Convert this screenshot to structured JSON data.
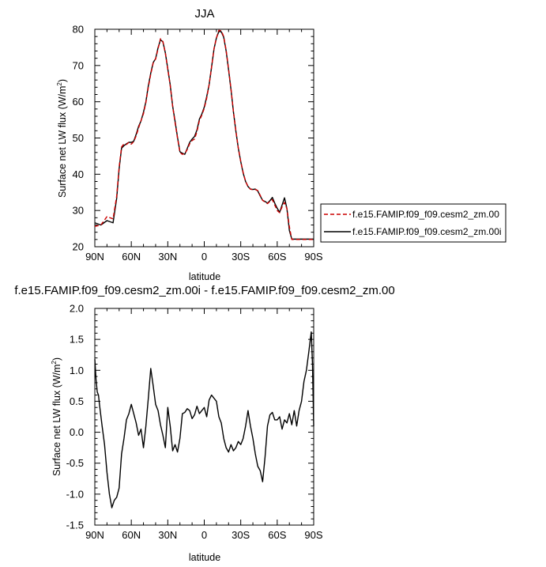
{
  "chart_data": [
    {
      "type": "line",
      "title": "JJA",
      "xlabel": "latitude",
      "ylabel": "Surface net LW flux (W/m",
      "ylabel_sup": "2",
      "ylabel_close": ")",
      "xlim": [
        90,
        -90
      ],
      "ylim": [
        20,
        80
      ],
      "x_ticks": [
        90,
        60,
        30,
        0,
        -30,
        -60,
        -90
      ],
      "x_tick_labels": [
        "90N",
        "60N",
        "30N",
        "0",
        "30S",
        "60S",
        "90S"
      ],
      "y_ticks": [
        20,
        30,
        40,
        50,
        60,
        70,
        80
      ],
      "y_tick_labels": [
        "20",
        "30",
        "40",
        "50",
        "60",
        "70",
        "80"
      ],
      "legend_position": "right",
      "x": [
        90,
        85,
        80,
        75,
        72,
        70,
        68,
        66,
        64,
        62,
        60,
        58,
        56,
        54,
        52,
        50,
        48,
        46,
        44,
        42,
        40,
        38,
        36,
        34,
        32,
        30,
        28,
        26,
        24,
        22,
        20,
        18,
        16,
        14,
        12,
        10,
        8,
        6,
        4,
        2,
        0,
        -2,
        -4,
        -6,
        -8,
        -10,
        -12,
        -14,
        -16,
        -18,
        -20,
        -22,
        -24,
        -26,
        -28,
        -30,
        -32,
        -34,
        -36,
        -38,
        -40,
        -42,
        -44,
        -46,
        -48,
        -50,
        -52,
        -54,
        -56,
        -58,
        -60,
        -62,
        -64,
        -66,
        -68,
        -70,
        -72,
        -74,
        -76,
        -78,
        -80,
        -82,
        -84,
        -86,
        -88,
        -90
      ],
      "series": [
        {
          "name": "f.e15.FAMIP.f09_f09.cesm2_zm.00",
          "color": "#cc0000",
          "dash": "dashed",
          "values": [
            25.6,
            26.0,
            28.3,
            27.7,
            34,
            42,
            47.5,
            48.4,
            48.2,
            48.8,
            48.3,
            49.0,
            50.6,
            52.8,
            54.8,
            56.7,
            59.8,
            64.0,
            67.6,
            70.7,
            71.8,
            74.6,
            77.4,
            76.6,
            73.4,
            69.0,
            64.5,
            58.8,
            54.2,
            50.0,
            46.0,
            45.5,
            45.7,
            46.8,
            48.4,
            49.3,
            49.7,
            51.8,
            54.8,
            56.3,
            58.2,
            61.0,
            64.7,
            69.5,
            74.6,
            77.6,
            79.7,
            79.6,
            78.0,
            74.2,
            69.0,
            63.5,
            57.3,
            52.0,
            47.2,
            43.5,
            40.5,
            38.0,
            36.6,
            35.9,
            35.7,
            35.8,
            35.5,
            34.2,
            32.8,
            32.3,
            31.9,
            32.5,
            33.0,
            31.5,
            30.0,
            29.4,
            31.0,
            32.2,
            30.5,
            25.5,
            22.0,
            22.0,
            22.0,
            22.0,
            22.0,
            22.0,
            22.0,
            22.0,
            22.0,
            22.0
          ]
        },
        {
          "name": "f.e15.FAMIP.f09_f09.cesm2_zm.00i",
          "color": "#000000",
          "dash": "solid",
          "values": [
            26.6,
            26.0,
            27.2,
            26.6,
            33.4,
            41.5,
            47.2,
            47.9,
            48.4,
            48.8,
            48.8,
            49.1,
            51.0,
            53.2,
            54.7,
            57.1,
            60.0,
            64.4,
            67.9,
            70.8,
            71.9,
            74.9,
            77.1,
            76.5,
            73.5,
            69.1,
            64.7,
            58.8,
            54.6,
            50.2,
            46.2,
            45.8,
            45.5,
            47.1,
            48.8,
            49.7,
            50.4,
            52.2,
            55.2,
            56.6,
            58.5,
            61.4,
            64.7,
            69.5,
            74.5,
            77.6,
            79.4,
            79.3,
            77.8,
            74.0,
            68.8,
            63.3,
            57.2,
            51.9,
            47.2,
            43.5,
            40.3,
            38.0,
            36.6,
            35.9,
            35.8,
            35.9,
            35.4,
            34.0,
            32.8,
            32.5,
            32.0,
            32.7,
            33.6,
            32.0,
            30.6,
            29.5,
            31.5,
            33.5,
            30.5,
            24.5,
            22.1,
            22.1,
            22.1,
            22.1,
            22.1,
            22.1,
            22.1,
            22.1,
            22.1,
            22.1
          ]
        }
      ]
    },
    {
      "type": "line",
      "title": "f.e15.FAMIP.f09_f09.cesm2_zm.00i - f.e15.FAMIP.f09_f09.cesm2_zm.00",
      "xlabel": "latitude",
      "ylabel": "Surface net LW flux (W/m",
      "ylabel_sup": "2",
      "ylabel_close": ")",
      "xlim": [
        90,
        -90
      ],
      "ylim": [
        -1.5,
        2.0
      ],
      "x_ticks": [
        90,
        60,
        30,
        0,
        -30,
        -60,
        -90
      ],
      "x_tick_labels": [
        "90N",
        "60N",
        "30N",
        "0",
        "30S",
        "60S",
        "90S"
      ],
      "y_ticks": [
        -1.5,
        -1.0,
        -0.5,
        0.0,
        0.5,
        1.0,
        1.5,
        2.0
      ],
      "y_tick_labels": [
        "-1.5",
        "-1.0",
        "-0.5",
        "0.0",
        "0.5",
        "1.0",
        "1.5",
        "2.0"
      ],
      "x": [
        90,
        89,
        88,
        87,
        86,
        84,
        82,
        80,
        78,
        76,
        74,
        72,
        70,
        68,
        66,
        64,
        62,
        60,
        58,
        56,
        54,
        52,
        50,
        48,
        46,
        44,
        42,
        40,
        38,
        36,
        34,
        32,
        30,
        28,
        26,
        24,
        22,
        20,
        18,
        16,
        14,
        12,
        10,
        8,
        6,
        4,
        2,
        0,
        -2,
        -4,
        -6,
        -8,
        -10,
        -12,
        -14,
        -16,
        -18,
        -20,
        -22,
        -24,
        -26,
        -28,
        -30,
        -32,
        -34,
        -36,
        -38,
        -40,
        -42,
        -44,
        -46,
        -48,
        -50,
        -52,
        -54,
        -56,
        -58,
        -60,
        -62,
        -64,
        -66,
        -68,
        -70,
        -72,
        -74,
        -76,
        -78,
        -80,
        -82,
        -84,
        -86,
        -88,
        -89,
        -90
      ],
      "series": [
        {
          "name": "",
          "color": "#000000",
          "dash": "solid",
          "values": [
            1.18,
            0.85,
            0.65,
            0.6,
            0.42,
            0.1,
            -0.2,
            -0.65,
            -1.0,
            -1.22,
            -1.1,
            -1.05,
            -0.9,
            -0.35,
            -0.1,
            0.2,
            0.3,
            0.45,
            0.3,
            0.15,
            -0.05,
            0.05,
            -0.25,
            0.1,
            0.55,
            1.03,
            0.75,
            0.45,
            0.35,
            0.12,
            -0.05,
            -0.25,
            0.4,
            0.1,
            -0.3,
            -0.2,
            -0.32,
            -0.1,
            0.3,
            0.32,
            0.38,
            0.35,
            0.22,
            0.28,
            0.42,
            0.3,
            0.35,
            0.4,
            0.25,
            0.52,
            0.6,
            0.55,
            0.5,
            0.25,
            0.15,
            -0.1,
            -0.25,
            -0.32,
            -0.2,
            -0.3,
            -0.25,
            -0.15,
            -0.2,
            -0.1,
            0.1,
            0.35,
            0.1,
            -0.1,
            -0.35,
            -0.55,
            -0.62,
            -0.8,
            -0.4,
            0.1,
            0.28,
            0.32,
            0.2,
            0.2,
            0.25,
            0.05,
            0.2,
            0.15,
            0.3,
            0.12,
            0.35,
            0.1,
            0.35,
            0.5,
            0.82,
            1.0,
            1.3,
            1.62,
            1.1,
            0.1
          ]
        }
      ]
    }
  ]
}
